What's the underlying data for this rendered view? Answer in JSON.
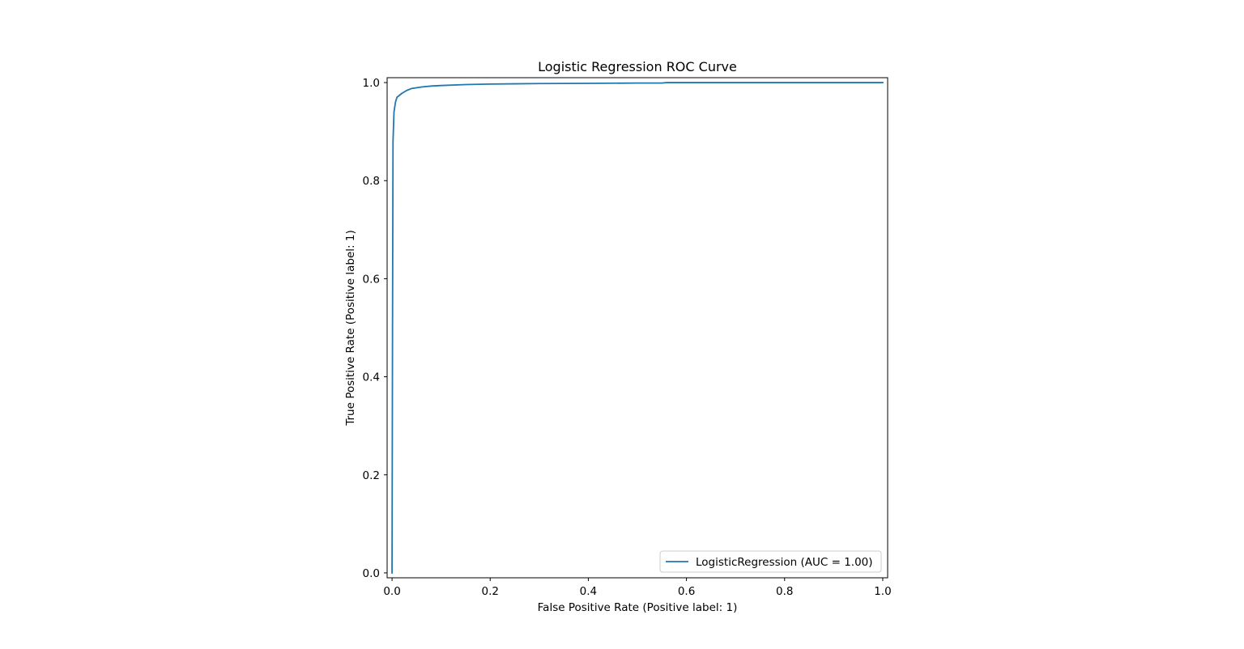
{
  "chart_data": {
    "type": "line",
    "title": "Logistic Regression ROC Curve",
    "xlabel": "False Positive Rate (Positive label: 1)",
    "ylabel": "True Positive Rate (Positive label: 1)",
    "xlim": [
      -0.01,
      1.01
    ],
    "ylim": [
      -0.01,
      1.01
    ],
    "x_ticks": [
      0.0,
      0.2,
      0.4,
      0.6,
      0.8,
      1.0
    ],
    "x_tick_labels": [
      "0.0",
      "0.2",
      "0.4",
      "0.6",
      "0.8",
      "1.0"
    ],
    "y_ticks": [
      0.0,
      0.2,
      0.4,
      0.6,
      0.8,
      1.0
    ],
    "y_tick_labels": [
      "0.0",
      "0.2",
      "0.4",
      "0.6",
      "0.8",
      "1.0"
    ],
    "grid": false,
    "legend_position": "lower-right",
    "series": [
      {
        "name": "LogisticRegression (AUC = 1.00)",
        "color": "#1f77b4",
        "x": [
          0.0,
          0.001,
          0.002,
          0.004,
          0.007,
          0.01,
          0.02,
          0.03,
          0.04,
          0.06,
          0.08,
          0.1,
          0.15,
          0.2,
          0.3,
          0.4,
          0.5,
          0.55,
          0.56,
          0.7,
          0.8,
          0.9,
          1.0
        ],
        "y": [
          0.0,
          0.5,
          0.88,
          0.94,
          0.96,
          0.97,
          0.978,
          0.984,
          0.988,
          0.991,
          0.993,
          0.994,
          0.996,
          0.997,
          0.998,
          0.9985,
          0.999,
          0.999,
          1.0,
          1.0,
          1.0,
          1.0,
          1.0
        ]
      }
    ]
  }
}
